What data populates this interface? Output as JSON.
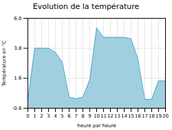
{
  "chart_data": {
    "type": "area",
    "title": "Evolution de la température",
    "xlabel": "heure par heure",
    "ylabel": "Température en °C",
    "x": [
      0,
      1,
      2,
      3,
      4,
      5,
      6,
      7,
      8,
      9,
      10,
      11,
      12,
      13,
      14,
      15,
      16,
      17,
      18,
      19,
      20
    ],
    "values": [
      0.0,
      3.8,
      3.8,
      3.8,
      3.5,
      2.8,
      0.2,
      0.1,
      0.2,
      1.5,
      5.3,
      4.6,
      4.6,
      4.6,
      4.6,
      4.5,
      3.0,
      0.05,
      0.05,
      1.4,
      1.4
    ],
    "colors": [
      "#a0cfe0",
      "#50a8c8"
    ],
    "xlim": [
      0,
      20
    ],
    "xticks": [
      0,
      1,
      2,
      3,
      4,
      5,
      6,
      7,
      8,
      9,
      10,
      11,
      12,
      13,
      14,
      15,
      16,
      17,
      18,
      19,
      20
    ],
    "ylim": [
      -0.6,
      6.0
    ],
    "yticks": [
      -0.6,
      1.6,
      3.8,
      {
        "value": 6.0,
        "label": "6.0"
      }
    ],
    "grid": true
  }
}
